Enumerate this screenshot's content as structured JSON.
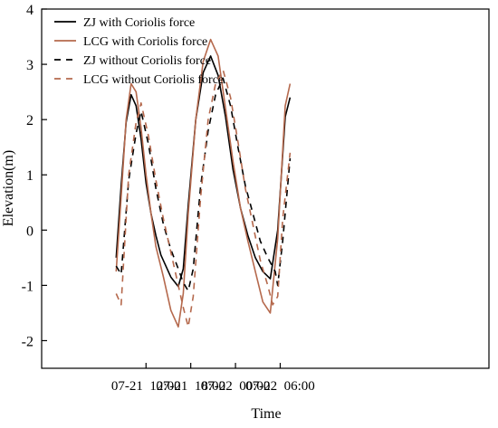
{
  "chart_data": {
    "type": "line",
    "title": "",
    "xlabel": "Time",
    "ylabel": "Elevation(m)",
    "ylim": [
      -2.5,
      4
    ],
    "yticks": [
      -2,
      -1,
      0,
      1,
      2,
      3,
      4
    ],
    "xlim": [
      "07-20 22:00",
      "07-23 10:00"
    ],
    "xticks": [
      {
        "t": "07-21 12:00",
        "label": "07-21  12:00"
      },
      {
        "t": "07-21 18:00",
        "label": "07-21  18:00"
      },
      {
        "t": "07-22 00:00",
        "label": "07-22  00:00"
      },
      {
        "t": "07-22 06:00",
        "label": "07-22  06:00"
      }
    ],
    "legend_position": "top-center",
    "grid": false,
    "series": [
      {
        "name": "ZJ with Coriolis force",
        "color": "#000000",
        "dash": "solid",
        "points": [
          [
            "07-21 08:00",
            -0.5
          ],
          [
            "07-21 08:40",
            0.8
          ],
          [
            "07-21 09:20",
            1.95
          ],
          [
            "07-21 10:00",
            2.45
          ],
          [
            "07-21 10:40",
            2.25
          ],
          [
            "07-21 11:20",
            1.65
          ],
          [
            "07-21 12:00",
            0.85
          ],
          [
            "07-21 12:40",
            0.3
          ],
          [
            "07-21 13:20",
            -0.1
          ],
          [
            "07-21 14:00",
            -0.45
          ],
          [
            "07-21 15:20",
            -0.85
          ],
          [
            "07-21 16:20",
            -1.02
          ],
          [
            "07-21 17:00",
            -0.7
          ],
          [
            "07-21 17:40",
            0.45
          ],
          [
            "07-21 18:40",
            2.0
          ],
          [
            "07-21 19:40",
            2.85
          ],
          [
            "07-21 20:40",
            3.15
          ],
          [
            "07-21 21:40",
            2.8
          ],
          [
            "07-21 22:40",
            2.05
          ],
          [
            "07-21 23:40",
            1.1
          ],
          [
            "07-22 00:40",
            0.4
          ],
          [
            "07-22 01:40",
            -0.1
          ],
          [
            "07-22 02:40",
            -0.5
          ],
          [
            "07-22 03:40",
            -0.75
          ],
          [
            "07-22 04:40",
            -0.88
          ],
          [
            "07-22 05:40",
            0.0
          ],
          [
            "07-22 06:40",
            2.05
          ],
          [
            "07-22 07:20",
            2.4
          ]
        ]
      },
      {
        "name": "LCG with Coriolis force",
        "color": "#b5694d",
        "dash": "solid",
        "points": [
          [
            "07-21 08:00",
            -0.75
          ],
          [
            "07-21 08:40",
            0.6
          ],
          [
            "07-21 09:20",
            2.0
          ],
          [
            "07-21 10:00",
            2.65
          ],
          [
            "07-21 10:40",
            2.5
          ],
          [
            "07-21 11:20",
            1.85
          ],
          [
            "07-21 12:00",
            1.0
          ],
          [
            "07-21 12:40",
            0.3
          ],
          [
            "07-21 13:20",
            -0.3
          ],
          [
            "07-21 14:20",
            -0.85
          ],
          [
            "07-21 15:20",
            -1.45
          ],
          [
            "07-21 16:20",
            -1.75
          ],
          [
            "07-21 17:00",
            -1.15
          ],
          [
            "07-21 17:40",
            0.3
          ],
          [
            "07-21 18:40",
            2.0
          ],
          [
            "07-21 19:40",
            3.05
          ],
          [
            "07-21 20:40",
            3.45
          ],
          [
            "07-21 21:40",
            3.15
          ],
          [
            "07-21 22:40",
            2.2
          ],
          [
            "07-21 23:40",
            1.25
          ],
          [
            "07-22 00:40",
            0.4
          ],
          [
            "07-22 01:40",
            -0.2
          ],
          [
            "07-22 02:40",
            -0.75
          ],
          [
            "07-22 03:40",
            -1.3
          ],
          [
            "07-22 04:40",
            -1.5
          ],
          [
            "07-22 05:40",
            -0.15
          ],
          [
            "07-22 06:40",
            2.25
          ],
          [
            "07-22 07:20",
            2.65
          ]
        ]
      },
      {
        "name": "ZJ without Coriolis force",
        "color": "#000000",
        "dash": "dashed",
        "points": [
          [
            "07-21 08:00",
            -0.65
          ],
          [
            "07-21 08:40",
            -0.8
          ],
          [
            "07-21 09:40",
            0.9
          ],
          [
            "07-21 10:40",
            1.75
          ],
          [
            "07-21 11:20",
            2.15
          ],
          [
            "07-21 12:20",
            1.55
          ],
          [
            "07-21 13:20",
            0.75
          ],
          [
            "07-21 14:20",
            0.1
          ],
          [
            "07-21 15:20",
            -0.35
          ],
          [
            "07-21 16:20",
            -0.7
          ],
          [
            "07-21 17:00",
            -0.95
          ],
          [
            "07-21 17:40",
            -1.1
          ],
          [
            "07-21 18:20",
            -0.7
          ],
          [
            "07-21 19:20",
            0.8
          ],
          [
            "07-21 20:20",
            1.8
          ],
          [
            "07-21 21:20",
            2.45
          ],
          [
            "07-21 22:20",
            2.75
          ],
          [
            "07-21 23:20",
            2.25
          ],
          [
            "07-22 00:20",
            1.5
          ],
          [
            "07-22 01:20",
            0.8
          ],
          [
            "07-22 02:20",
            0.3
          ],
          [
            "07-22 03:20",
            -0.2
          ],
          [
            "07-22 04:20",
            -0.5
          ],
          [
            "07-22 05:20",
            -0.75
          ],
          [
            "07-22 05:40",
            -1.0
          ],
          [
            "07-22 06:20",
            -0.2
          ],
          [
            "07-22 07:20",
            1.3
          ]
        ]
      },
      {
        "name": "LCG without Coriolis force",
        "color": "#b5694d",
        "dash": "dashed",
        "points": [
          [
            "07-21 08:00",
            -1.15
          ],
          [
            "07-21 08:40",
            -1.35
          ],
          [
            "07-21 09:40",
            1.0
          ],
          [
            "07-21 10:40",
            1.95
          ],
          [
            "07-21 11:20",
            2.3
          ],
          [
            "07-21 12:20",
            1.7
          ],
          [
            "07-21 13:20",
            0.9
          ],
          [
            "07-21 14:20",
            0.2
          ],
          [
            "07-21 15:20",
            -0.4
          ],
          [
            "07-21 16:20",
            -1.0
          ],
          [
            "07-21 17:00",
            -1.4
          ],
          [
            "07-21 17:40",
            -1.75
          ],
          [
            "07-21 18:20",
            -1.2
          ],
          [
            "07-21 19:20",
            0.6
          ],
          [
            "07-21 20:20",
            2.0
          ],
          [
            "07-21 21:20",
            2.65
          ],
          [
            "07-21 22:20",
            2.9
          ],
          [
            "07-21 23:20",
            2.4
          ],
          [
            "07-22 00:20",
            1.6
          ],
          [
            "07-22 01:20",
            0.75
          ],
          [
            "07-22 02:20",
            0.1
          ],
          [
            "07-22 03:20",
            -0.55
          ],
          [
            "07-22 04:20",
            -1.0
          ],
          [
            "07-22 05:00",
            -1.35
          ],
          [
            "07-22 05:40",
            -1.2
          ],
          [
            "07-22 06:20",
            0.2
          ],
          [
            "07-22 07:20",
            1.4
          ]
        ]
      }
    ]
  }
}
